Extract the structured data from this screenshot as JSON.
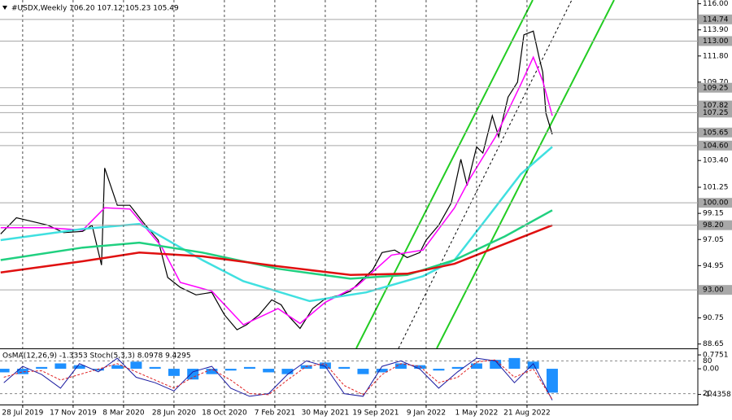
{
  "chart_data": [
    {
      "type": "line",
      "title": "#USDX,Weekly  106.20 107.12 105.23 105.49",
      "xlim": [
        -7.2,
        214.2
      ],
      "xticks": [
        {
          "value": 0,
          "label": "28 Jul 2019"
        },
        {
          "value": 16,
          "label": "17 Nov 2019"
        },
        {
          "value": 32,
          "label": "8 Mar 2020"
        },
        {
          "value": 48,
          "label": "28 Jun 2020"
        },
        {
          "value": 64,
          "label": "18 Oct 2020"
        },
        {
          "value": 80,
          "label": "7 Feb 2021"
        },
        {
          "value": 96,
          "label": "30 May 2021"
        },
        {
          "value": 112,
          "label": "19 Sep 2021"
        },
        {
          "value": 128,
          "label": "9 Jan 2022"
        },
        {
          "value": 144,
          "label": "1 May 2022"
        },
        {
          "value": 160,
          "label": "21 Aug 2022"
        }
      ],
      "ylim": [
        88.3,
        116.3
      ],
      "yticks": [
        {
          "value": 116,
          "label": "116.00"
        },
        {
          "value": 113.9,
          "label": "113.90"
        },
        {
          "value": 111.8,
          "label": "111.80"
        },
        {
          "value": 109.7,
          "label": "109.70"
        },
        {
          "value": 103.4,
          "label": "103.40"
        },
        101.25,
        99.15,
        97.05,
        94.95,
        90.75,
        88.65
      ],
      "levels": [
        114.74,
        {
          "value": 113,
          "label": "113.00"
        },
        109.25,
        107.82,
        107.25,
        105.65,
        {
          "value": 104.6,
          "label": "104.60"
        },
        {
          "value": 100,
          "label": "100.00"
        },
        {
          "value": 98.2,
          "label": "98.20"
        },
        {
          "value": 93,
          "label": "93.00"
        }
      ],
      "level_color": "#a8a8a8",
      "grid": true,
      "series": [
        {
          "color": "#000000",
          "width": 1.2,
          "x": [
            -7,
            -2,
            3,
            8,
            13,
            19,
            22,
            25,
            26,
            30,
            34,
            38,
            43,
            46,
            50,
            55,
            60,
            64,
            68,
            71,
            75,
            79,
            82,
            84,
            88,
            92,
            96,
            101,
            104,
            108,
            111,
            114,
            118,
            122,
            126,
            128,
            132,
            136,
            139,
            141,
            144,
            146,
            149,
            151,
            154,
            157,
            159,
            162,
            164,
            165,
            166,
            168
          ],
          "values": [
            97.5,
            98.8,
            98.5,
            98.2,
            97.6,
            97.7,
            98.2,
            95.0,
            102.8,
            99.8,
            99.8,
            98.5,
            97.0,
            94.0,
            93.2,
            92.6,
            92.8,
            91.0,
            89.8,
            90.2,
            91.0,
            92.2,
            91.8,
            91.0,
            89.9,
            91.5,
            92.3,
            92.6,
            92.9,
            93.9,
            94.6,
            96.0,
            96.2,
            95.6,
            96.0,
            97.0,
            98.2,
            100.0,
            103.5,
            101.4,
            104.5,
            104.0,
            107.0,
            105.3,
            108.5,
            109.7,
            113.5,
            113.8,
            111.5,
            110.5,
            107.2,
            105.5
          ]
        },
        {
          "color": "#ff00ff",
          "width": 1.5,
          "x": [
            -7,
            8,
            19,
            26,
            34,
            44,
            50,
            60,
            70,
            81,
            88,
            96,
            106,
            117,
            127,
            137,
            142,
            150,
            158,
            162,
            165,
            168
          ],
          "values": [
            98.0,
            98.0,
            97.8,
            99.6,
            99.5,
            96.5,
            93.6,
            92.9,
            90.2,
            91.5,
            90.3,
            92.0,
            93.3,
            95.8,
            96.2,
            99.6,
            102.0,
            105.3,
            109.5,
            111.7,
            109.8,
            107.0
          ]
        },
        {
          "color": "#40e0e0",
          "width": 2.5,
          "x": [
            -7,
            19,
            37,
            57,
            70,
            91,
            109,
            127,
            137,
            148,
            158,
            168
          ],
          "values": [
            97.0,
            97.9,
            98.3,
            95.4,
            93.7,
            92.1,
            92.8,
            94.1,
            95.4,
            99.0,
            102.3,
            104.5
          ]
        },
        {
          "color": "#20d080",
          "width": 2.5,
          "x": [
            -7,
            19,
            37,
            57,
            81,
            104,
            122,
            137,
            153,
            168
          ],
          "values": [
            95.4,
            96.4,
            96.8,
            96.0,
            94.7,
            93.9,
            94.2,
            95.4,
            97.3,
            99.4
          ]
        },
        {
          "color": "#e01010",
          "width": 2.5,
          "x": [
            -7,
            19,
            37,
            57,
            81,
            104,
            122,
            137,
            153,
            168
          ],
          "values": [
            94.4,
            95.3,
            96.0,
            95.7,
            94.9,
            94.2,
            94.3,
            95.1,
            96.7,
            98.2
          ]
        }
      ]
    },
    {
      "type": "oscillator",
      "title": "OsMA(12,26,9) -1.3353 Stoch(5,3,3) 8.0978 9.4295",
      "ylim": [
        0,
        100
      ],
      "yticks": [
        80,
        20
      ],
      "y2lim": [
        -2.0,
        1.05
      ],
      "y2ticks": [
        0.7751,
        {
          "value": 0,
          "label": "0.00"
        },
        -1.4358
      ],
      "x": [
        -6,
        0,
        6,
        12,
        18,
        24,
        30,
        36,
        42,
        48,
        54,
        60,
        66,
        72,
        78,
        84,
        90,
        96,
        102,
        108,
        114,
        120,
        126,
        132,
        138,
        144,
        150,
        156,
        162,
        168
      ],
      "series": [
        {
          "kind": "histogram",
          "axis": "y2",
          "color": "#1e90ff",
          "values": [
            -0.2,
            -0.3,
            0.1,
            0.3,
            0.2,
            -0.1,
            0.2,
            0.4,
            0.1,
            -0.4,
            -0.6,
            -0.3,
            -0.1,
            0.1,
            -0.2,
            -0.3,
            0.2,
            0.35,
            0.1,
            -0.3,
            -0.2,
            0.3,
            0.2,
            -0.1,
            0.1,
            0.3,
            0.5,
            0.6,
            0.4,
            -1.3353
          ]
        },
        {
          "kind": "line",
          "color": "#1a1aa0",
          "values": [
            40,
            70,
            55,
            30,
            75,
            60,
            85,
            50,
            40,
            25,
            60,
            70,
            30,
            15,
            20,
            55,
            80,
            70,
            20,
            15,
            70,
            80,
            65,
            30,
            60,
            85,
            80,
            40,
            75,
            8.0978
          ]
        },
        {
          "kind": "line",
          "color": "#e02020",
          "dash": true,
          "values": [
            50,
            60,
            62,
            45,
            55,
            65,
            75,
            60,
            45,
            30,
            50,
            65,
            45,
            20,
            18,
            45,
            70,
            75,
            35,
            18,
            55,
            75,
            70,
            40,
            50,
            78,
            82,
            50,
            65,
            9.4295
          ]
        }
      ]
    }
  ]
}
